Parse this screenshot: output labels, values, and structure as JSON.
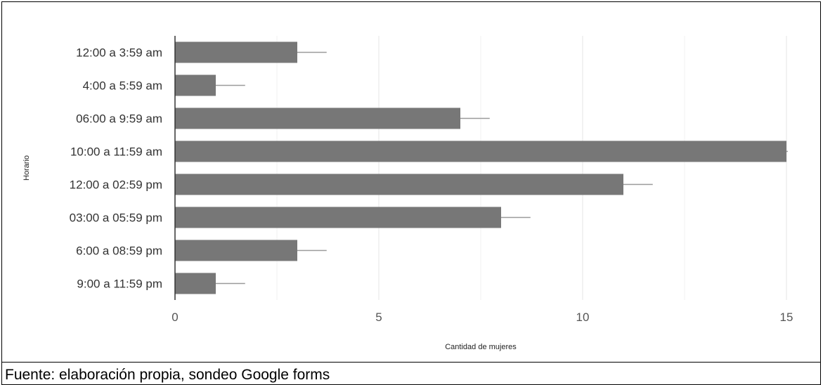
{
  "caption": "Fuente: elaboración propia, sondeo Google forms",
  "chart_data": {
    "type": "bar",
    "orientation": "horizontal",
    "title": "",
    "xlabel": "Cantidad de mujeres",
    "ylabel": "Horario",
    "categories": [
      "12:00 a 3:59 am",
      "4:00 a 5:59 am",
      "06:00 a 9:59 am",
      "10:00 a 11:59 am",
      "12:00 a 02:59 pm",
      "03:00 a 05:59 pm",
      "6:00 a 08:59 pm",
      "9:00 a 11:59 pm"
    ],
    "values": [
      3,
      1,
      7,
      15,
      11,
      8,
      3,
      1
    ],
    "xlim": [
      0,
      15
    ],
    "xticks": [
      0,
      5,
      10,
      15
    ],
    "error_bars": true,
    "grid": true,
    "bar_color": "#777777"
  }
}
